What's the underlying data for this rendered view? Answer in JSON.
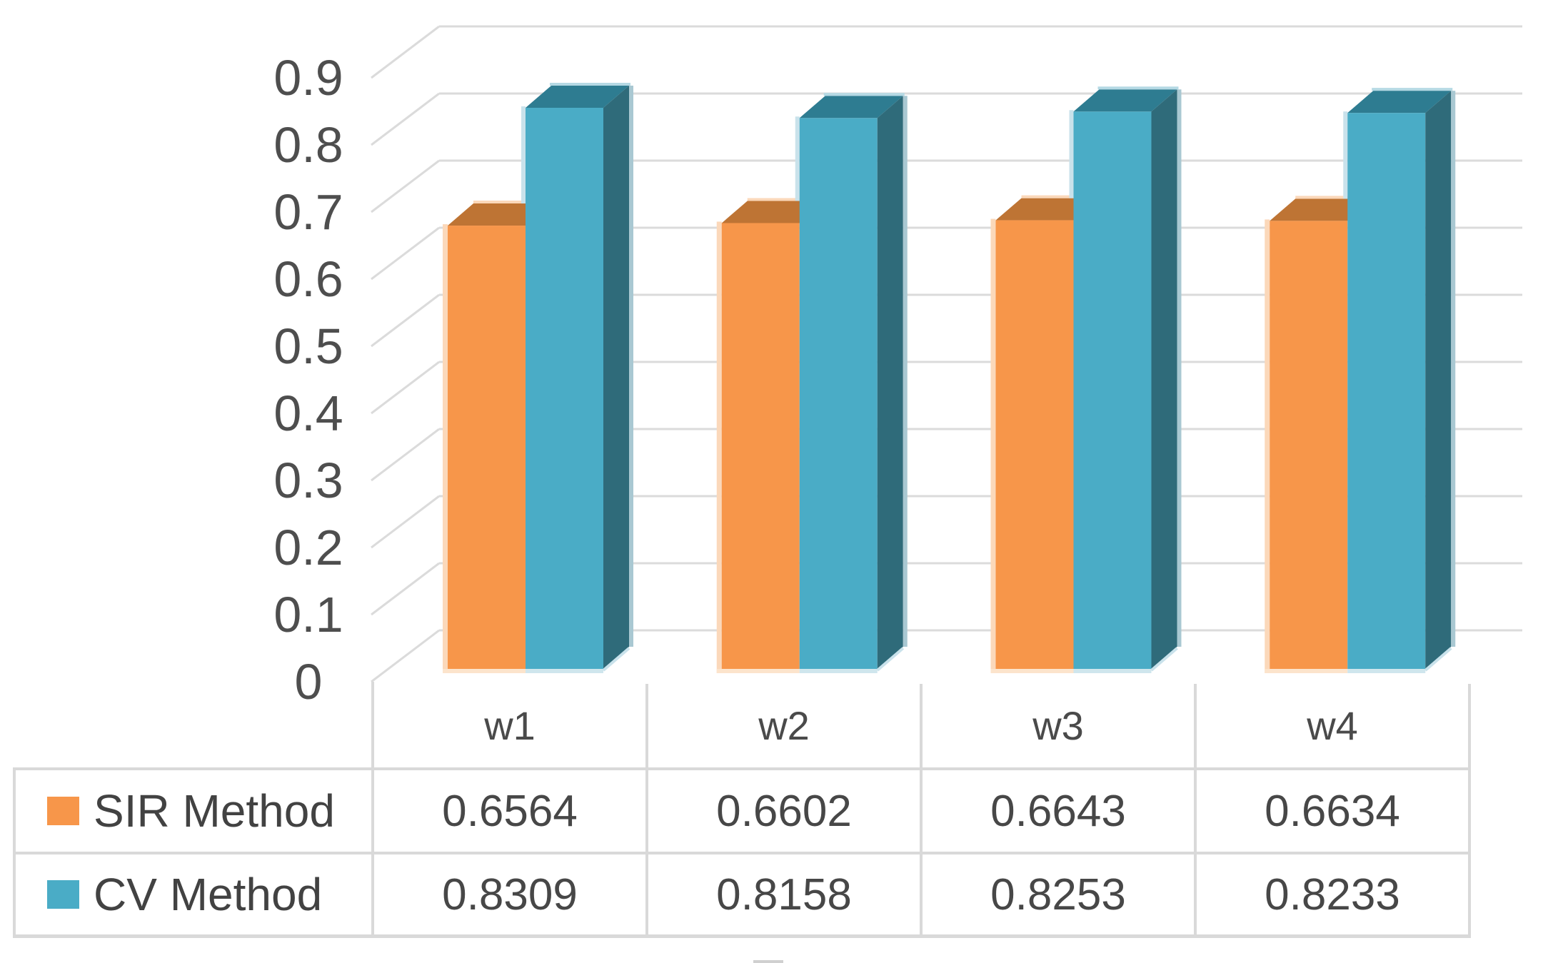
{
  "chart_data": {
    "type": "bar",
    "variant": "3d-clustered-column",
    "title": "",
    "xlabel": "",
    "ylabel": "",
    "categories": [
      "w1",
      "w2",
      "w3",
      "w4"
    ],
    "series": [
      {
        "name": "SIR Method",
        "color": "#F7964A",
        "values": [
          0.6564,
          0.6602,
          0.6643,
          0.6634
        ]
      },
      {
        "name": "CV Method",
        "color": "#4AACC6",
        "values": [
          0.8309,
          0.8158,
          0.8253,
          0.8233
        ]
      }
    ],
    "ylim": [
      0,
      0.9
    ],
    "y_ticks": [
      "0",
      "0.1",
      "0.2",
      "0.3",
      "0.4",
      "0.5",
      "0.6",
      "0.7",
      "0.8",
      "0.9"
    ],
    "grid": true,
    "legend_position": "data-table-left",
    "data_table_shown": true
  },
  "colors": {
    "series1_front": "#F7964A",
    "series1_top": "#BE7434",
    "series1_halo": "#FBD8BA",
    "series1_halo_bottom": "#FCE4CC",
    "series2_front": "#4AACC6",
    "series2_top": "#2E7C91",
    "series2_side": "#2F6B7A",
    "series2_halo": "#C9E2EB",
    "series2_halo_bottom": "#CFE6ED",
    "series2_edge": "#A9C8D2",
    "series2_top_edge": "#B5D9E4",
    "gridline": "#DBDBDB",
    "table_border": "#D9D9D9",
    "tick_text": "#4E4E4E",
    "text": "#474747",
    "background": "#FFFFFF"
  }
}
